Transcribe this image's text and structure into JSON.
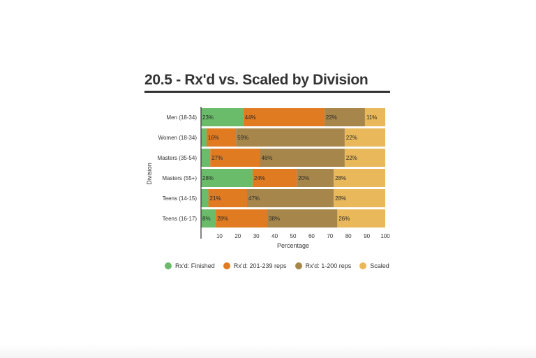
{
  "title": "20.5 - Rx'd vs. Scaled by Division",
  "chart_data": {
    "type": "bar",
    "orientation": "horizontal",
    "stacked": true,
    "xlabel": "Percentage",
    "ylabel": "Division",
    "xlim": [
      0,
      100
    ],
    "xticks": [
      10,
      20,
      30,
      40,
      50,
      60,
      70,
      80,
      90,
      100
    ],
    "categories": [
      "Men (18-34)",
      "Women (18-34)",
      "Masters (35-54)",
      "Masters (55+)",
      "Teens (14-15)",
      "Teens (16-17)"
    ],
    "series": [
      {
        "name": "Rx'd: Finished",
        "color": "#6abb6a",
        "values": [
          23,
          3,
          5,
          28,
          4,
          8
        ],
        "labels": [
          "23%",
          "",
          "",
          "28%",
          "",
          "8%"
        ]
      },
      {
        "name": "Rx'd: 201-239 reps",
        "color": "#e07b22",
        "values": [
          44,
          16,
          27,
          24,
          21,
          28
        ],
        "labels": [
          "44%",
          "16%",
          "27%",
          "24%",
          "21%",
          "28%"
        ]
      },
      {
        "name": "Rx'd: 1-200 reps",
        "color": "#a6864a",
        "values": [
          22,
          59,
          46,
          20,
          47,
          38
        ],
        "labels": [
          "22%",
          "59%",
          "46%",
          "20%",
          "47%",
          "38%"
        ]
      },
      {
        "name": "Scaled",
        "color": "#e8b85a",
        "values": [
          11,
          22,
          22,
          28,
          28,
          26
        ],
        "labels": [
          "11%",
          "22%",
          "22%",
          "28%",
          "28%",
          "26%"
        ]
      }
    ],
    "legend_position": "bottom"
  }
}
